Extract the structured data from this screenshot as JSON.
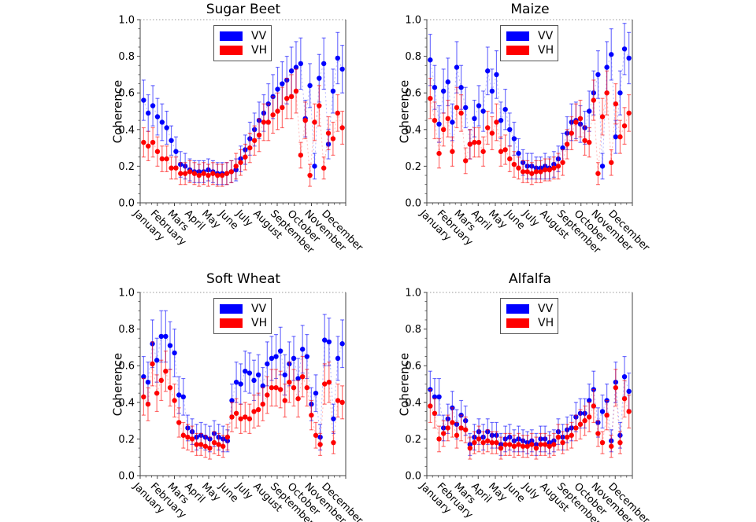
{
  "colors": {
    "vv": "#0000ff",
    "vh": "#ff0000",
    "axis": "#444444",
    "grid": "#999999",
    "text": "#000000",
    "background": "#ffffff"
  },
  "axis": {
    "ylabel": "Coherence",
    "ylim": [
      0.0,
      1.0
    ],
    "yticks": [
      0.0,
      0.2,
      0.4,
      0.6,
      0.8,
      1.0
    ],
    "ytick_labels": [
      "0.0",
      "0.2",
      "0.4",
      "0.6",
      "0.8",
      "1.0"
    ],
    "months": [
      "January",
      "February",
      "Mars",
      "April",
      "May",
      "June",
      "July",
      "August",
      "September",
      "October",
      "November",
      "December"
    ],
    "x_points_span_months": [
      0.2,
      11.8
    ],
    "top_gridline": "dotted at y=1.0"
  },
  "legend": {
    "items": [
      {
        "label": "VV",
        "color": "#0000ff"
      },
      {
        "label": "VH",
        "color": "#ff0000"
      }
    ],
    "position": "upper center"
  },
  "chart_data": [
    {
      "type": "scatter",
      "title": "Sugar Beet",
      "xlabel": "",
      "ylabel": "Coherence",
      "ylim": [
        0.0,
        1.0
      ],
      "categories": [
        "January",
        "February",
        "Mars",
        "April",
        "May",
        "June",
        "July",
        "August",
        "September",
        "October",
        "November",
        "December"
      ],
      "series": [
        {
          "name": "VV",
          "color": "#0000ff",
          "values": [
            0.56,
            0.49,
            0.53,
            0.47,
            0.44,
            0.41,
            0.34,
            0.28,
            0.21,
            0.2,
            0.18,
            0.17,
            0.17,
            0.17,
            0.18,
            0.17,
            0.16,
            0.16,
            0.16,
            0.17,
            0.18,
            0.24,
            0.29,
            0.35,
            0.4,
            0.45,
            0.49,
            0.54,
            0.58,
            0.62,
            0.65,
            0.67,
            0.72,
            0.74,
            0.76,
            0.46,
            0.64,
            0.2,
            0.68,
            0.76,
            0.32,
            0.61,
            0.79,
            0.73
          ],
          "errors": [
            0.11,
            0.1,
            0.11,
            0.1,
            0.1,
            0.09,
            0.08,
            0.08,
            0.07,
            0.07,
            0.06,
            0.06,
            0.06,
            0.06,
            0.06,
            0.06,
            0.06,
            0.06,
            0.06,
            0.06,
            0.06,
            0.07,
            0.08,
            0.09,
            0.09,
            0.1,
            0.1,
            0.11,
            0.12,
            0.12,
            0.12,
            0.13,
            0.13,
            0.14,
            0.14,
            0.1,
            0.12,
            0.07,
            0.13,
            0.14,
            0.08,
            0.12,
            0.14,
            0.13
          ]
        },
        {
          "name": "VH",
          "color": "#ff0000",
          "values": [
            0.33,
            0.31,
            0.33,
            0.28,
            0.24,
            0.24,
            0.19,
            0.19,
            0.16,
            0.16,
            0.17,
            0.16,
            0.15,
            0.16,
            0.15,
            0.16,
            0.15,
            0.15,
            0.16,
            0.17,
            0.2,
            0.22,
            0.25,
            0.3,
            0.34,
            0.37,
            0.44,
            0.44,
            0.48,
            0.5,
            0.52,
            0.57,
            0.58,
            0.61,
            0.26,
            0.45,
            0.15,
            0.44,
            0.53,
            0.19,
            0.38,
            0.35,
            0.49,
            0.41
          ],
          "errors": [
            0.08,
            0.08,
            0.08,
            0.08,
            0.07,
            0.07,
            0.06,
            0.06,
            0.06,
            0.06,
            0.06,
            0.06,
            0.06,
            0.06,
            0.06,
            0.06,
            0.06,
            0.06,
            0.06,
            0.06,
            0.07,
            0.07,
            0.07,
            0.08,
            0.08,
            0.09,
            0.1,
            0.1,
            0.1,
            0.1,
            0.11,
            0.11,
            0.12,
            0.12,
            0.07,
            0.1,
            0.06,
            0.1,
            0.11,
            0.06,
            0.09,
            0.09,
            0.1,
            0.09
          ]
        }
      ]
    },
    {
      "type": "scatter",
      "title": "Maize",
      "xlabel": "",
      "ylabel": "Coherence",
      "ylim": [
        0.0,
        1.0
      ],
      "categories": [
        "January",
        "February",
        "Mars",
        "April",
        "May",
        "June",
        "July",
        "August",
        "September",
        "October",
        "November",
        "December"
      ],
      "series": [
        {
          "name": "VV",
          "color": "#0000ff",
          "values": [
            0.78,
            0.63,
            0.43,
            0.61,
            0.66,
            0.44,
            0.74,
            0.63,
            0.52,
            0.32,
            0.46,
            0.53,
            0.5,
            0.72,
            0.61,
            0.7,
            0.45,
            0.51,
            0.4,
            0.35,
            0.27,
            0.22,
            0.2,
            0.2,
            0.19,
            0.19,
            0.2,
            0.19,
            0.21,
            0.24,
            0.3,
            0.38,
            0.44,
            0.45,
            0.43,
            0.41,
            0.5,
            0.6,
            0.7,
            0.2,
            0.74,
            0.81,
            0.36,
            0.6,
            0.84,
            0.79
          ],
          "errors": [
            0.14,
            0.12,
            0.1,
            0.12,
            0.13,
            0.1,
            0.14,
            0.12,
            0.11,
            0.08,
            0.1,
            0.11,
            0.11,
            0.13,
            0.12,
            0.13,
            0.1,
            0.11,
            0.09,
            0.09,
            0.08,
            0.07,
            0.07,
            0.07,
            0.06,
            0.06,
            0.07,
            0.06,
            0.07,
            0.07,
            0.08,
            0.09,
            0.1,
            0.1,
            0.1,
            0.09,
            0.11,
            0.12,
            0.13,
            0.07,
            0.14,
            0.14,
            0.09,
            0.12,
            0.14,
            0.14
          ]
        },
        {
          "name": "VH",
          "color": "#ff0000",
          "values": [
            0.57,
            0.45,
            0.27,
            0.4,
            0.46,
            0.28,
            0.52,
            0.49,
            0.23,
            0.32,
            0.33,
            0.33,
            0.28,
            0.41,
            0.38,
            0.44,
            0.28,
            0.29,
            0.24,
            0.21,
            0.19,
            0.17,
            0.17,
            0.16,
            0.17,
            0.17,
            0.18,
            0.18,
            0.19,
            0.2,
            0.22,
            0.32,
            0.38,
            0.44,
            0.46,
            0.34,
            0.33,
            0.56,
            0.16,
            0.47,
            0.6,
            0.22,
            0.54,
            0.36,
            0.42,
            0.49
          ],
          "errors": [
            0.11,
            0.1,
            0.08,
            0.09,
            0.1,
            0.08,
            0.11,
            0.1,
            0.07,
            0.08,
            0.08,
            0.08,
            0.08,
            0.09,
            0.09,
            0.1,
            0.08,
            0.08,
            0.07,
            0.07,
            0.06,
            0.06,
            0.06,
            0.06,
            0.06,
            0.06,
            0.06,
            0.06,
            0.06,
            0.07,
            0.07,
            0.08,
            0.09,
            0.1,
            0.1,
            0.08,
            0.08,
            0.11,
            0.06,
            0.1,
            0.12,
            0.07,
            0.11,
            0.09,
            0.1,
            0.1
          ]
        }
      ]
    },
    {
      "type": "scatter",
      "title": "Soft Wheat",
      "xlabel": "",
      "ylabel": "Coherence",
      "ylim": [
        0.0,
        1.0
      ],
      "categories": [
        "January",
        "February",
        "Mars",
        "April",
        "May",
        "June",
        "July",
        "August",
        "September",
        "October",
        "November",
        "December"
      ],
      "series": [
        {
          "name": "VV",
          "color": "#0000ff",
          "values": [
            0.54,
            0.51,
            0.72,
            0.63,
            0.76,
            0.76,
            0.71,
            0.67,
            0.44,
            0.43,
            0.26,
            0.24,
            0.21,
            0.22,
            0.21,
            0.2,
            0.23,
            0.21,
            0.2,
            0.19,
            0.41,
            0.51,
            0.5,
            0.57,
            0.56,
            0.52,
            0.55,
            0.49,
            0.61,
            0.64,
            0.65,
            0.68,
            0.55,
            0.61,
            0.64,
            0.53,
            0.69,
            0.65,
            0.39,
            0.45,
            0.21,
            0.74,
            0.73,
            0.31,
            0.64,
            0.72
          ],
          "errors": [
            0.11,
            0.11,
            0.13,
            0.12,
            0.14,
            0.14,
            0.13,
            0.13,
            0.1,
            0.1,
            0.07,
            0.07,
            0.07,
            0.07,
            0.07,
            0.07,
            0.07,
            0.07,
            0.07,
            0.06,
            0.09,
            0.11,
            0.11,
            0.11,
            0.11,
            0.11,
            0.11,
            0.1,
            0.12,
            0.12,
            0.12,
            0.13,
            0.11,
            0.12,
            0.12,
            0.11,
            0.13,
            0.12,
            0.09,
            0.1,
            0.07,
            0.14,
            0.13,
            0.08,
            0.12,
            0.13
          ]
        },
        {
          "name": "VH",
          "color": "#ff0000",
          "values": [
            0.43,
            0.39,
            0.61,
            0.45,
            0.52,
            0.57,
            0.48,
            0.41,
            0.29,
            0.22,
            0.21,
            0.2,
            0.17,
            0.17,
            0.16,
            0.15,
            0.18,
            0.17,
            0.16,
            0.21,
            0.32,
            0.34,
            0.31,
            0.32,
            0.31,
            0.35,
            0.36,
            0.39,
            0.44,
            0.48,
            0.48,
            0.47,
            0.41,
            0.51,
            0.48,
            0.42,
            0.54,
            0.48,
            0.33,
            0.22,
            0.17,
            0.5,
            0.51,
            0.18,
            0.41,
            0.4
          ],
          "errors": [
            0.1,
            0.09,
            0.12,
            0.1,
            0.11,
            0.11,
            0.1,
            0.09,
            0.08,
            0.07,
            0.07,
            0.07,
            0.06,
            0.06,
            0.06,
            0.06,
            0.06,
            0.06,
            0.06,
            0.07,
            0.08,
            0.08,
            0.08,
            0.08,
            0.08,
            0.09,
            0.09,
            0.09,
            0.1,
            0.1,
            0.1,
            0.1,
            0.09,
            0.11,
            0.1,
            0.1,
            0.11,
            0.1,
            0.08,
            0.07,
            0.06,
            0.11,
            0.11,
            0.06,
            0.09,
            0.09
          ]
        }
      ]
    },
    {
      "type": "scatter",
      "title": "Alfalfa",
      "xlabel": "",
      "ylabel": "Coherence",
      "ylim": [
        0.0,
        1.0
      ],
      "categories": [
        "January",
        "February",
        "Mars",
        "April",
        "May",
        "June",
        "July",
        "August",
        "September",
        "October",
        "November",
        "December"
      ],
      "series": [
        {
          "name": "VV",
          "color": "#0000ff",
          "values": [
            0.47,
            0.43,
            0.43,
            0.26,
            0.31,
            0.37,
            0.28,
            0.33,
            0.3,
            0.17,
            0.21,
            0.24,
            0.21,
            0.24,
            0.22,
            0.22,
            0.17,
            0.2,
            0.21,
            0.19,
            0.2,
            0.19,
            0.18,
            0.19,
            0.17,
            0.2,
            0.2,
            0.18,
            0.19,
            0.24,
            0.21,
            0.25,
            0.26,
            0.32,
            0.34,
            0.34,
            0.41,
            0.47,
            0.29,
            0.35,
            0.41,
            0.19,
            0.51,
            0.22,
            0.54,
            0.46
          ],
          "errors": [
            0.1,
            0.1,
            0.1,
            0.07,
            0.08,
            0.09,
            0.08,
            0.08,
            0.08,
            0.06,
            0.07,
            0.07,
            0.07,
            0.07,
            0.07,
            0.07,
            0.06,
            0.07,
            0.07,
            0.06,
            0.07,
            0.06,
            0.06,
            0.06,
            0.06,
            0.07,
            0.07,
            0.06,
            0.06,
            0.07,
            0.07,
            0.07,
            0.07,
            0.08,
            0.08,
            0.08,
            0.09,
            0.1,
            0.08,
            0.09,
            0.09,
            0.06,
            0.11,
            0.07,
            0.11,
            0.1
          ]
        },
        {
          "name": "VH",
          "color": "#ff0000",
          "values": [
            0.38,
            0.34,
            0.2,
            0.23,
            0.26,
            0.29,
            0.22,
            0.26,
            0.25,
            0.15,
            0.18,
            0.2,
            0.18,
            0.19,
            0.18,
            0.18,
            0.15,
            0.17,
            0.17,
            0.16,
            0.17,
            0.16,
            0.16,
            0.17,
            0.15,
            0.17,
            0.17,
            0.16,
            0.17,
            0.21,
            0.18,
            0.21,
            0.22,
            0.26,
            0.28,
            0.3,
            0.32,
            0.38,
            0.23,
            0.18,
            0.33,
            0.16,
            0.48,
            0.18,
            0.42,
            0.35
          ],
          "errors": [
            0.09,
            0.08,
            0.07,
            0.07,
            0.07,
            0.08,
            0.07,
            0.07,
            0.07,
            0.06,
            0.06,
            0.07,
            0.06,
            0.06,
            0.06,
            0.06,
            0.06,
            0.06,
            0.06,
            0.06,
            0.06,
            0.06,
            0.06,
            0.06,
            0.06,
            0.06,
            0.06,
            0.06,
            0.06,
            0.07,
            0.06,
            0.07,
            0.07,
            0.07,
            0.08,
            0.08,
            0.08,
            0.09,
            0.07,
            0.06,
            0.08,
            0.06,
            0.1,
            0.06,
            0.1,
            0.09
          ]
        }
      ]
    }
  ]
}
